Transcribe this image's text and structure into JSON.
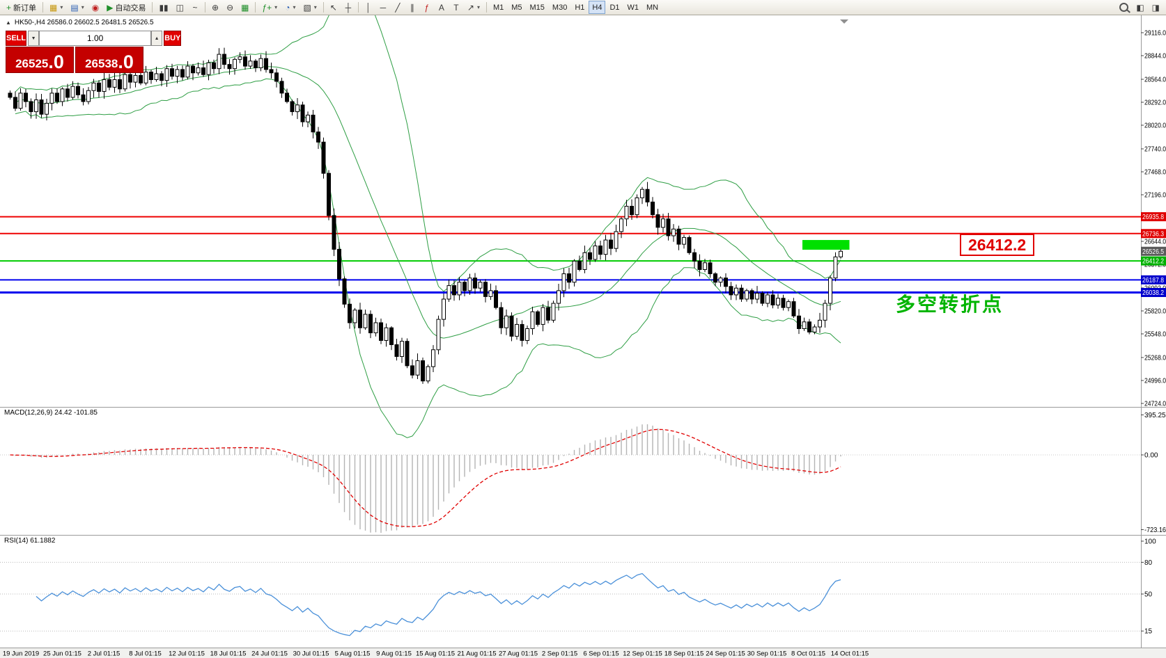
{
  "toolbar": {
    "new_order": "新订单",
    "auto_trading": "自动交易",
    "timeframes": [
      "M1",
      "M5",
      "M15",
      "M30",
      "H1",
      "H4",
      "D1",
      "W1",
      "MN"
    ],
    "active_timeframe": "H4"
  },
  "icons": {
    "collapse": "▲",
    "new_order_plus": "+",
    "new_chart": "▦",
    "profiles": "▤",
    "sound": "◉",
    "auto_play": "▶",
    "bars_chart": "▮▮",
    "candle_chart": "◫",
    "line_chart": "~",
    "zoom_in": "⊕",
    "zoom_out": "⊖",
    "tile_windows": "▦",
    "indicators": "ƒ+",
    "periods": "◔",
    "templates": "▧",
    "cursor": "↖",
    "crosshair": "┼",
    "vertical_line": "│",
    "horizontal_line": "─",
    "trend_line": "╱",
    "channel": "∥",
    "fibonacci": "ƒ",
    "text": "A",
    "text_label": "T",
    "arrows": "↗",
    "dropdown": "▾",
    "layout_a": "◧",
    "layout_b": "◨"
  },
  "trade_panel": {
    "sell_label": "SELL",
    "buy_label": "BUY",
    "volume": "1.00",
    "sell_price": "26525",
    "sell_price_frac": ".0",
    "buy_price": "26538",
    "buy_price_frac": ".0"
  },
  "chart": {
    "symbol_info": "HK50-,H4  26586.0 26602.5 26481.5 26526.5",
    "annotation": "多空转折点",
    "zone_label": "26412.2"
  },
  "macd_panel": {
    "label": "MACD(12,26,9) 24.42 -101.85",
    "axis_labels": [
      "395.25",
      "0.00",
      "-723.16"
    ]
  },
  "rsi_panel": {
    "label": "RSI(14) 61.1882",
    "axis_labels": [
      "100",
      "80",
      "50",
      "15"
    ]
  },
  "chart_data": {
    "type": "candlestick",
    "symbol": "HK50-",
    "period": "H4",
    "ohlc": {
      "open": 26586.0,
      "high": 26602.5,
      "low": 26481.5,
      "close": 26526.5
    },
    "price_axis_ticks": [
      "29116.0",
      "28844.0",
      "28564.0",
      "28292.0",
      "28020.0",
      "27740.0",
      "27468.0",
      "27196.0",
      "26916.0",
      "26644.0",
      "26372.0",
      "26092.0",
      "25820.0",
      "25548.0",
      "25268.0",
      "24996.0",
      "24724.0"
    ],
    "first_open": 28400,
    "closes": [
      28350,
      28220,
      28400,
      28300,
      28180,
      28320,
      28150,
      28280,
      28400,
      28300,
      28450,
      28350,
      28480,
      28380,
      28300,
      28430,
      28520,
      28420,
      28560,
      28470,
      28560,
      28450,
      28620,
      28530,
      28610,
      28520,
      28650,
      28560,
      28630,
      28550,
      28690,
      28600,
      28680,
      28590,
      28720,
      28640,
      28700,
      28620,
      28760,
      28690,
      28860,
      28740,
      28690,
      28800,
      28830,
      28720,
      28780,
      28700,
      28810,
      28680,
      28640,
      28540,
      28400,
      28300,
      28180,
      28260,
      28060,
      28140,
      27940,
      27820,
      27450,
      26950,
      26550,
      26200,
      25900,
      25680,
      25830,
      25620,
      25780,
      25560,
      25680,
      25470,
      25620,
      25420,
      25280,
      25460,
      25170,
      25060,
      25230,
      24990,
      25160,
      25360,
      25720,
      25960,
      26120,
      26010,
      26160,
      26060,
      26210,
      26090,
      26160,
      25990,
      26060,
      25860,
      25620,
      25760,
      25520,
      25660,
      25470,
      25610,
      25810,
      25660,
      25860,
      25710,
      25910,
      26060,
      26260,
      26160,
      26410,
      26310,
      26510,
      26430,
      26590,
      26490,
      26660,
      26560,
      26760,
      26910,
      27060,
      26960,
      27160,
      27260,
      27110,
      26960,
      26810,
      26910,
      26710,
      26790,
      26610,
      26690,
      26510,
      26410,
      26310,
      26390,
      26260,
      26160,
      26210,
      26110,
      26010,
      26090,
      25960,
      26060,
      25960,
      26030,
      25910,
      26010,
      25890,
      25970,
      25860,
      25930,
      25760,
      25610,
      25690,
      25570,
      25630,
      25710,
      25910,
      26210,
      26460,
      26526.5
    ],
    "hlines": [
      {
        "price": 26935.8,
        "color": "#ee0000",
        "width": 2,
        "tag_color": "#e00000"
      },
      {
        "price": 26736.3,
        "color": "#ee0000",
        "width": 2,
        "tag_color": "#e00000"
      },
      {
        "price": 26412.2,
        "color": "#00cc00",
        "width": 2,
        "tag_color": "#00b000"
      },
      {
        "price": 26187.8,
        "color": "#0000ee",
        "width": 2,
        "tag_color": "#0000cc"
      },
      {
        "price": 26038.2,
        "color": "#0000ee",
        "width": 3,
        "tag_color": "#0000cc"
      }
    ],
    "current_price": {
      "value": 26526.5,
      "tag_color": "#5a5a5a"
    },
    "highlight_zone": {
      "price_top": 26660,
      "price_bottom": 26545,
      "bar_start": 152,
      "bar_end": 161,
      "color": "#00e000"
    },
    "bollinger": {
      "period": 20,
      "deviation": 2,
      "color": "#2e9e44"
    },
    "macd": {
      "fast": 12,
      "slow": 26,
      "signal_period": 9,
      "hist_color": "#b4b4b4",
      "signal_color": "#e00000"
    },
    "rsi": {
      "period": 14,
      "color": "#4a90d9",
      "levels": [
        80,
        50,
        15
      ]
    },
    "time_labels": [
      "19 Jun 2019",
      "25 Jun 01:15",
      "2 Jul 01:15",
      "8 Jul 01:15",
      "12 Jul 01:15",
      "18 Jul 01:15",
      "24 Jul 01:15",
      "30 Jul 01:15",
      "5 Aug 01:15",
      "9 Aug 01:15",
      "15 Aug 01:15",
      "21 Aug 01:15",
      "27 Aug 01:15",
      "2 Sep 01:15",
      "6 Sep 01:15",
      "12 Sep 01:15",
      "18 Sep 01:15",
      "24 Sep 01:15",
      "30 Sep 01:15",
      "8 Oct 01:15",
      "14 Oct 01:15"
    ]
  }
}
